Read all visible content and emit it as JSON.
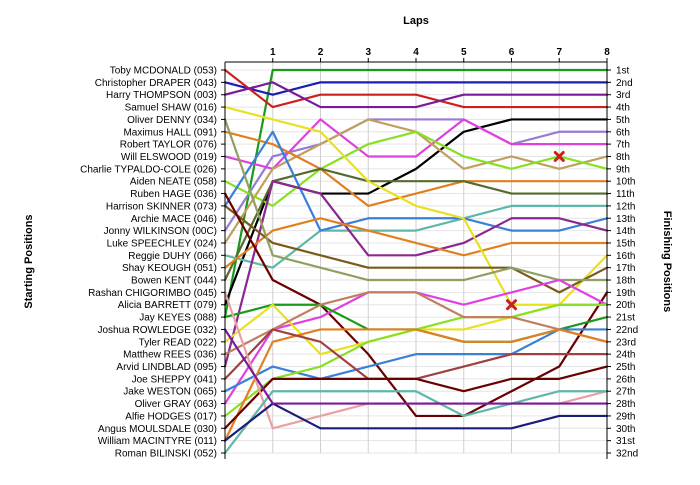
{
  "chart_data": {
    "type": "line",
    "title": "Laps",
    "ylabel_left": "Starting Positions",
    "ylabel_right": "Finishing Positions",
    "x_ticks": [
      1,
      2,
      3,
      4,
      5,
      6,
      7,
      8
    ],
    "xlim": [
      0,
      8
    ],
    "ylim": [
      1,
      32
    ],
    "grid": true,
    "start_labels": [
      "Toby MCDONALD (053)",
      "Christopher DRAPER (043)",
      "Harry THOMPSON (003)",
      "Samuel SHAW (016)",
      "Oliver DENNY (034)",
      "Maximus HALL (091)",
      "Robert TAYLOR (076)",
      "Will ELSWOOD (019)",
      "Charlie TYPALDO-COLE (026)",
      "Aiden NEATE (058)",
      "Ruben HAGE (036)",
      "Harrison SKINNER (073)",
      "Archie MACE (046)",
      "Jonny WILKINSON (00C)",
      "Luke SPEECHLEY (024)",
      "Reggie DUHY (066)",
      "Shay KEOUGH (051)",
      "Bowen KENT (044)",
      "Rashan CHIGORIMBO (045)",
      "Alicia BARRETT (079)",
      "Jay KEYES (088)",
      "Joshua ROWLEDGE (032)",
      "Tyler READ (022)",
      "Matthew REES (036)",
      "Arvid LINDBLAD (095)",
      "Joe SHEPPY (041)",
      "Jake WESTON (065)",
      "Oliver GRAY (063)",
      "Alfie HODGES (017)",
      "Angus MOULSDALE (030)",
      "William MACINTYRE (011)",
      "Roman BILINSKI (052)"
    ],
    "finish_labels": [
      "1st",
      "2nd",
      "3rd",
      "4th",
      "5th",
      "6th",
      "7th",
      "8th",
      "9th",
      "10th",
      "11th",
      "12th",
      "13th",
      "14th",
      "15th",
      "16th",
      "17th",
      "18th",
      "19th",
      "20th",
      "21st",
      "22nd",
      "23rd",
      "24th",
      "25th",
      "26th",
      "27th",
      "28th",
      "29th",
      "30th",
      "31st",
      "32nd"
    ],
    "series": [
      {
        "color": "#1a9a1a",
        "positions": [
          21,
          1,
          1,
          1,
          1,
          1,
          1,
          1,
          1
        ]
      },
      {
        "color": "#1c1cb0",
        "positions": [
          2,
          3,
          2,
          2,
          2,
          2,
          2,
          2,
          2
        ]
      },
      {
        "color": "#cc2020",
        "positions": [
          1,
          4,
          3,
          3,
          3,
          4,
          4,
          4,
          4
        ]
      },
      {
        "color": "#7a1a9a",
        "positions": [
          3,
          2,
          4,
          4,
          4,
          3,
          3,
          3,
          3
        ]
      },
      {
        "color": "#000000",
        "positions": [
          20,
          10,
          11,
          11,
          9,
          6,
          5,
          5,
          5
        ]
      },
      {
        "color": "#9a7ad4",
        "positions": [
          14,
          8,
          7,
          5,
          5,
          5,
          7,
          6,
          6
        ]
      },
      {
        "color": "#e040e0",
        "positions": [
          8,
          9,
          5,
          8,
          8,
          5,
          7,
          7,
          7
        ]
      },
      {
        "color": "#c0a060",
        "positions": [
          15,
          9,
          7,
          5,
          6,
          9,
          8,
          9,
          8
        ]
      },
      {
        "color": "#88e020",
        "positions": [
          10,
          12,
          9,
          7,
          6,
          8,
          9,
          8,
          9
        ]
      },
      {
        "color": "#e08020",
        "positions": [
          6,
          7,
          9,
          12,
          11,
          10,
          10,
          10,
          10
        ]
      },
      {
        "color": "#556b2f",
        "positions": [
          18,
          10,
          9,
          10,
          10,
          10,
          11,
          11,
          11
        ]
      },
      {
        "color": "#5fb7a8",
        "positions": [
          16,
          17,
          14,
          14,
          14,
          13,
          12,
          12,
          12
        ]
      },
      {
        "color": "#3a80d8",
        "positions": [
          12,
          6,
          14,
          13,
          13,
          13,
          14,
          14,
          13
        ]
      },
      {
        "color": "#8a2890",
        "positions": [
          25,
          10,
          11,
          16,
          16,
          15,
          13,
          13,
          14
        ]
      },
      {
        "color": "#e08020",
        "positions": [
          17,
          14,
          13,
          14,
          15,
          16,
          15,
          15,
          15
        ]
      },
      {
        "color": "#e8e020",
        "positions": [
          4,
          5,
          6,
          10,
          12,
          13,
          20,
          20,
          16
        ]
      },
      {
        "color": "#7a5a1a",
        "positions": [
          12,
          15,
          16,
          17,
          17,
          17,
          17,
          19,
          17
        ]
      },
      {
        "color": "#8fa060",
        "positions": [
          5,
          16,
          17,
          18,
          18,
          18,
          17,
          18,
          18
        ]
      },
      {
        "color": "#6a0000",
        "positions": [
          11,
          18,
          20,
          24,
          29,
          29,
          27,
          25,
          19
        ]
      },
      {
        "color": "#e040e0",
        "positions": [
          28,
          22,
          21,
          19,
          19,
          20,
          19,
          18,
          20
        ]
      },
      {
        "color": "#1a9a1a",
        "positions": [
          21,
          20,
          20,
          22,
          22,
          23,
          23,
          22,
          21
        ]
      },
      {
        "color": "#e8e020",
        "positions": [
          23,
          20,
          24,
          23,
          22,
          22,
          21,
          20,
          20
        ]
      },
      {
        "color": "#3a80d8",
        "positions": [
          27,
          25,
          26,
          25,
          24,
          24,
          24,
          22,
          22
        ]
      },
      {
        "color": "#88e020",
        "positions": [
          29,
          26,
          25,
          23,
          22,
          21,
          21,
          20,
          20
        ]
      },
      {
        "color": "#c08060",
        "positions": [
          24,
          22,
          20,
          19,
          19,
          21,
          21,
          22,
          23
        ]
      },
      {
        "color": "#e08020",
        "positions": [
          31,
          23,
          22,
          22,
          22,
          23,
          23,
          22,
          23
        ]
      },
      {
        "color": "#a04040",
        "positions": [
          26,
          22,
          23,
          26,
          26,
          25,
          24,
          24,
          24
        ]
      },
      {
        "color": "#6a0000",
        "positions": [
          30,
          26,
          26,
          26,
          26,
          27,
          26,
          26,
          25
        ]
      },
      {
        "color": "#e8a0a0",
        "positions": [
          19,
          30,
          29,
          28,
          28,
          28,
          28,
          28,
          27
        ]
      },
      {
        "color": "#5fb7a8",
        "positions": [
          32,
          27,
          27,
          27,
          27,
          29,
          28,
          27,
          27
        ]
      },
      {
        "color": "#1c1c7a",
        "positions": [
          31,
          28,
          30,
          30,
          30,
          30,
          30,
          29,
          29
        ]
      },
      {
        "color": "#7a1a9a",
        "positions": [
          22,
          28,
          28,
          28,
          28,
          28,
          28,
          28,
          28
        ]
      }
    ],
    "markers": [
      {
        "type": "retired",
        "color": "#cc2020",
        "lap": 7,
        "position": 8
      },
      {
        "type": "retired",
        "color": "#cc2020",
        "lap": 6,
        "position": 20
      }
    ]
  }
}
